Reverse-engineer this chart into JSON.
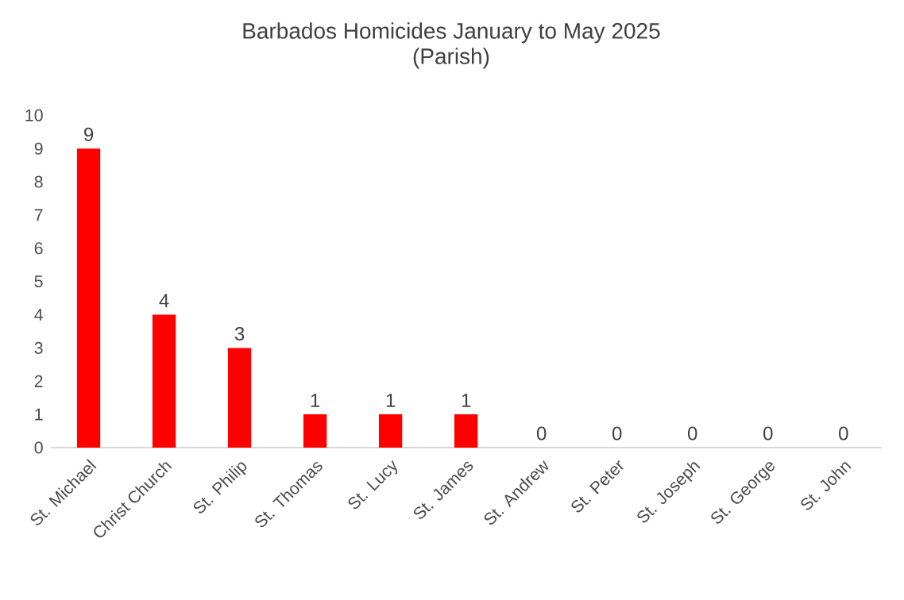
{
  "chart_data": {
    "type": "bar",
    "title": "Barbados Homicides January to May 2025",
    "subtitle": "(Parish)",
    "categories": [
      "St. Michael",
      "Christ Church",
      "St. Philip",
      "St. Thomas",
      "St. Lucy",
      "St. James",
      "St. Andrew",
      "St. Peter",
      "St. Joseph",
      "St. George",
      "St. John"
    ],
    "values": [
      9,
      4,
      3,
      1,
      1,
      1,
      0,
      0,
      0,
      0,
      0
    ],
    "color": "#ff0000",
    "ylim": [
      0,
      10
    ],
    "yticks": [
      0,
      1,
      2,
      3,
      4,
      5,
      6,
      7,
      8,
      9,
      10
    ],
    "data_labels": true
  }
}
